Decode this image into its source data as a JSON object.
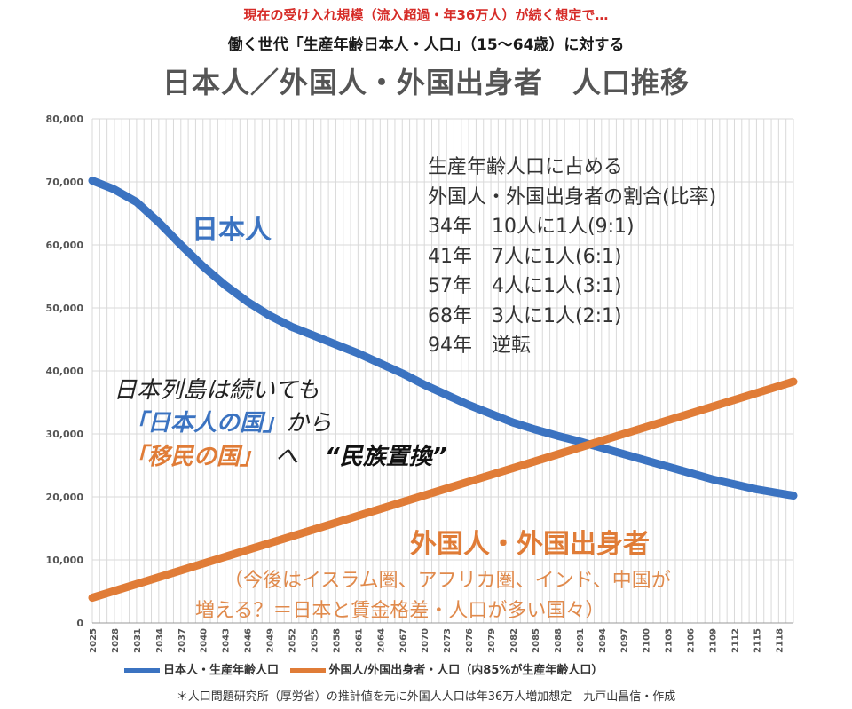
{
  "header": {
    "subtitle1": "現在の受け入れ規模（流入超過・年36万人）が続く想定で…",
    "subtitle2": "働く世代「生産年齢日本人・人口」（15〜64歳）に対する",
    "title": "日本人／外国人・外国出身者　人口推移"
  },
  "annotations": {
    "ratio_lines": [
      "生産年齢人口に占める",
      "外国人・外国出身者の割合(比率)",
      "34年　10人に1人(9:1)",
      "41年　7人に1人(6:1)",
      "57年　4人に1人(3:1)",
      "68年　3人に1人(2:1)",
      "94年　逆転"
    ],
    "japanese_label": "日本人",
    "foreign_label": "外国人・外国出身者",
    "foreign_note_1": "（今後はイスラム圏、アフリカ圏、インド、中国が",
    "foreign_note_2": "増える？＝日本と賃金格差・人口が多い国々）",
    "slogan_1": "日本列島は続いても",
    "slogan_2a": "「日本人の国」",
    "slogan_2b": "から",
    "slogan_3a": "「移民の国」",
    "slogan_3b": "へ",
    "slogan_3c": "“民族置換”"
  },
  "legend": {
    "japanese": "日本人・生産年齢人口",
    "foreign": "外国人/外国出身者・人口（内85%が生産年齢人口）"
  },
  "footnote": "＊人口問題研究所（厚労省）の推計値を元に外国人人口は年36万人増加想定　九戸山昌信・作成",
  "colors": {
    "japanese": "#3b73c1",
    "foreign": "#e07c37",
    "grid": "#d9d9d9"
  },
  "chart_data": {
    "type": "line",
    "ylim": [
      0,
      80000
    ],
    "yticks": [
      0,
      10000,
      20000,
      30000,
      40000,
      50000,
      60000,
      70000,
      80000
    ],
    "ytick_labels": [
      "0",
      "10,000",
      "20,000",
      "30,000",
      "40,000",
      "50,000",
      "60,000",
      "70,000",
      "80,000"
    ],
    "x_start": 2025,
    "x_end": 2120,
    "xtick_labels": [
      "2025",
      "2028",
      "2031",
      "2034",
      "2037",
      "2040",
      "2043",
      "2046",
      "2049",
      "2052",
      "2055",
      "2058",
      "2061",
      "2064",
      "2067",
      "2070",
      "2073",
      "2076",
      "2079",
      "2082",
      "2085",
      "2088",
      "2091",
      "2094",
      "2097",
      "2100",
      "2103",
      "2106",
      "2109",
      "2112",
      "2115",
      "2118"
    ],
    "grid": true,
    "legend_position": "bottom",
    "series": [
      {
        "name": "日本人・生産年齢人口",
        "x": [
          2025,
          2028,
          2031,
          2034,
          2037,
          2040,
          2043,
          2046,
          2049,
          2052,
          2055,
          2058,
          2061,
          2064,
          2067,
          2070,
          2073,
          2076,
          2079,
          2082,
          2085,
          2088,
          2091,
          2094,
          2097,
          2100,
          2103,
          2106,
          2109,
          2112,
          2115,
          2120
        ],
        "values": [
          70200,
          68800,
          66800,
          63600,
          60000,
          56600,
          53600,
          51000,
          48800,
          47000,
          45600,
          44200,
          42800,
          41200,
          39600,
          37800,
          36200,
          34600,
          33200,
          31800,
          30700,
          29700,
          28800,
          27800,
          26800,
          25800,
          24800,
          23800,
          22800,
          22000,
          21200,
          20200
        ]
      },
      {
        "name": "外国人/外国出身者・人口（内85%が生産年齢人口）",
        "x": [
          2025,
          2120
        ],
        "values": [
          4000,
          38300
        ]
      }
    ]
  }
}
